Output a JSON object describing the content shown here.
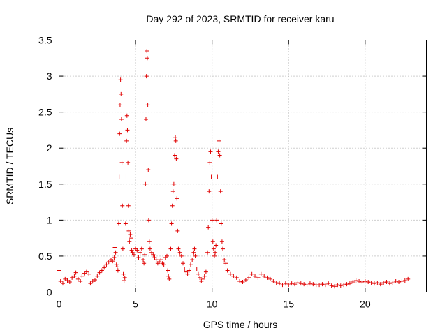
{
  "chart_data": {
    "type": "scatter",
    "title": "Day 292 of 2023, SRMTID for receiver karu",
    "xlabel": "GPS time / hours",
    "ylabel": "SRMTID / TECUs",
    "xlim": [
      0,
      24
    ],
    "ylim": [
      0,
      3.5
    ],
    "xticks": [
      0,
      5,
      10,
      15,
      20
    ],
    "xtick_labels": [
      "0",
      "5",
      "10",
      "15",
      "20"
    ],
    "yticks": [
      0,
      0.5,
      1,
      1.5,
      2,
      2.5,
      3,
      3.5
    ],
    "ytick_labels": [
      "0",
      "0.5",
      "1",
      "1.5",
      "2",
      "2.5",
      "3",
      "3.5"
    ],
    "grid": true,
    "marker": "+",
    "color": "#e00000",
    "series": [
      {
        "name": "SRMTID",
        "points": [
          [
            0.0,
            0.3
          ],
          [
            0.1,
            0.15
          ],
          [
            0.25,
            0.12
          ],
          [
            0.4,
            0.18
          ],
          [
            0.55,
            0.16
          ],
          [
            0.7,
            0.14
          ],
          [
            0.85,
            0.2
          ],
          [
            1.0,
            0.22
          ],
          [
            1.1,
            0.27
          ],
          [
            1.25,
            0.18
          ],
          [
            1.4,
            0.15
          ],
          [
            1.5,
            0.22
          ],
          [
            1.65,
            0.26
          ],
          [
            1.8,
            0.28
          ],
          [
            1.95,
            0.25
          ],
          [
            2.05,
            0.12
          ],
          [
            2.2,
            0.15
          ],
          [
            2.35,
            0.17
          ],
          [
            2.5,
            0.22
          ],
          [
            2.65,
            0.27
          ],
          [
            2.8,
            0.3
          ],
          [
            2.95,
            0.34
          ],
          [
            3.1,
            0.38
          ],
          [
            3.25,
            0.42
          ],
          [
            3.4,
            0.45
          ],
          [
            3.5,
            0.43
          ],
          [
            3.6,
            0.48
          ],
          [
            3.65,
            0.62
          ],
          [
            3.7,
            0.55
          ],
          [
            3.75,
            0.38
          ],
          [
            3.8,
            0.35
          ],
          [
            3.85,
            0.3
          ],
          [
            3.9,
            0.95
          ],
          [
            3.93,
            1.6
          ],
          [
            3.96,
            2.2
          ],
          [
            3.99,
            2.6
          ],
          [
            4.02,
            2.95
          ],
          [
            4.05,
            2.75
          ],
          [
            4.08,
            2.4
          ],
          [
            4.11,
            1.8
          ],
          [
            4.14,
            1.2
          ],
          [
            4.17,
            0.6
          ],
          [
            4.2,
            0.25
          ],
          [
            4.25,
            0.16
          ],
          [
            4.3,
            0.2
          ],
          [
            4.35,
            0.95
          ],
          [
            4.38,
            1.6
          ],
          [
            4.41,
            2.1
          ],
          [
            4.44,
            2.45
          ],
          [
            4.47,
            2.25
          ],
          [
            4.5,
            1.8
          ],
          [
            4.53,
            1.2
          ],
          [
            4.56,
            0.85
          ],
          [
            4.6,
            0.7
          ],
          [
            4.65,
            0.8
          ],
          [
            4.7,
            0.75
          ],
          [
            4.75,
            0.58
          ],
          [
            4.8,
            0.55
          ],
          [
            4.9,
            0.52
          ],
          [
            5.0,
            0.6
          ],
          [
            5.1,
            0.58
          ],
          [
            5.2,
            0.48
          ],
          [
            5.3,
            0.55
          ],
          [
            5.4,
            0.6
          ],
          [
            5.5,
            0.45
          ],
          [
            5.55,
            0.4
          ],
          [
            5.6,
            0.52
          ],
          [
            5.65,
            1.5
          ],
          [
            5.68,
            2.4
          ],
          [
            5.71,
            3.0
          ],
          [
            5.74,
            3.35
          ],
          [
            5.77,
            3.25
          ],
          [
            5.8,
            2.6
          ],
          [
            5.83,
            1.7
          ],
          [
            5.86,
            1.0
          ],
          [
            5.9,
            0.7
          ],
          [
            5.95,
            0.6
          ],
          [
            6.05,
            0.55
          ],
          [
            6.15,
            0.52
          ],
          [
            6.25,
            0.48
          ],
          [
            6.35,
            0.45
          ],
          [
            6.45,
            0.4
          ],
          [
            6.55,
            0.42
          ],
          [
            6.65,
            0.45
          ],
          [
            6.75,
            0.4
          ],
          [
            6.85,
            0.38
          ],
          [
            6.95,
            0.48
          ],
          [
            7.05,
            0.5
          ],
          [
            7.1,
            0.3
          ],
          [
            7.15,
            0.22
          ],
          [
            7.2,
            0.18
          ],
          [
            7.3,
            0.6
          ],
          [
            7.35,
            0.95
          ],
          [
            7.4,
            1.2
          ],
          [
            7.45,
            1.4
          ],
          [
            7.5,
            1.5
          ],
          [
            7.55,
            1.9
          ],
          [
            7.6,
            2.15
          ],
          [
            7.63,
            2.1
          ],
          [
            7.66,
            1.85
          ],
          [
            7.7,
            1.3
          ],
          [
            7.75,
            0.85
          ],
          [
            7.8,
            0.6
          ],
          [
            7.9,
            0.55
          ],
          [
            8.0,
            0.5
          ],
          [
            8.1,
            0.4
          ],
          [
            8.2,
            0.32
          ],
          [
            8.3,
            0.28
          ],
          [
            8.4,
            0.25
          ],
          [
            8.5,
            0.3
          ],
          [
            8.6,
            0.38
          ],
          [
            8.7,
            0.45
          ],
          [
            8.8,
            0.55
          ],
          [
            8.85,
            0.6
          ],
          [
            8.9,
            0.5
          ],
          [
            9.0,
            0.32
          ],
          [
            9.1,
            0.25
          ],
          [
            9.2,
            0.2
          ],
          [
            9.3,
            0.15
          ],
          [
            9.4,
            0.18
          ],
          [
            9.5,
            0.22
          ],
          [
            9.6,
            0.28
          ],
          [
            9.7,
            0.55
          ],
          [
            9.75,
            0.9
          ],
          [
            9.8,
            1.4
          ],
          [
            9.85,
            1.8
          ],
          [
            9.9,
            1.95
          ],
          [
            9.95,
            1.6
          ],
          [
            10.0,
            1.0
          ],
          [
            10.05,
            0.7
          ],
          [
            10.1,
            0.6
          ],
          [
            10.15,
            0.5
          ],
          [
            10.2,
            0.55
          ],
          [
            10.25,
            0.65
          ],
          [
            10.3,
            1.0
          ],
          [
            10.35,
            1.6
          ],
          [
            10.4,
            1.95
          ],
          [
            10.45,
            2.1
          ],
          [
            10.5,
            1.9
          ],
          [
            10.55,
            1.4
          ],
          [
            10.6,
            0.95
          ],
          [
            10.65,
            0.7
          ],
          [
            10.7,
            0.6
          ],
          [
            10.8,
            0.45
          ],
          [
            10.9,
            0.4
          ],
          [
            11.0,
            0.3
          ],
          [
            11.2,
            0.25
          ],
          [
            11.4,
            0.22
          ],
          [
            11.6,
            0.2
          ],
          [
            11.8,
            0.15
          ],
          [
            12.0,
            0.14
          ],
          [
            12.2,
            0.17
          ],
          [
            12.4,
            0.2
          ],
          [
            12.6,
            0.25
          ],
          [
            12.8,
            0.22
          ],
          [
            13.0,
            0.2
          ],
          [
            13.2,
            0.25
          ],
          [
            13.4,
            0.22
          ],
          [
            13.6,
            0.2
          ],
          [
            13.8,
            0.18
          ],
          [
            14.0,
            0.15
          ],
          [
            14.2,
            0.13
          ],
          [
            14.4,
            0.12
          ],
          [
            14.6,
            0.1
          ],
          [
            14.8,
            0.12
          ],
          [
            15.0,
            0.1
          ],
          [
            15.2,
            0.12
          ],
          [
            15.4,
            0.11
          ],
          [
            15.6,
            0.13
          ],
          [
            15.8,
            0.12
          ],
          [
            16.0,
            0.11
          ],
          [
            16.2,
            0.1
          ],
          [
            16.4,
            0.12
          ],
          [
            16.6,
            0.11
          ],
          [
            16.8,
            0.1
          ],
          [
            17.0,
            0.1
          ],
          [
            17.2,
            0.11
          ],
          [
            17.4,
            0.1
          ],
          [
            17.6,
            0.12
          ],
          [
            17.8,
            0.09
          ],
          [
            18.0,
            0.08
          ],
          [
            18.2,
            0.1
          ],
          [
            18.4,
            0.09
          ],
          [
            18.6,
            0.1
          ],
          [
            18.8,
            0.11
          ],
          [
            19.0,
            0.12
          ],
          [
            19.2,
            0.14
          ],
          [
            19.4,
            0.16
          ],
          [
            19.6,
            0.15
          ],
          [
            19.8,
            0.14
          ],
          [
            20.0,
            0.15
          ],
          [
            20.2,
            0.14
          ],
          [
            20.4,
            0.13
          ],
          [
            20.6,
            0.12
          ],
          [
            20.8,
            0.13
          ],
          [
            21.0,
            0.11
          ],
          [
            21.2,
            0.13
          ],
          [
            21.4,
            0.14
          ],
          [
            21.6,
            0.12
          ],
          [
            21.8,
            0.13
          ],
          [
            22.0,
            0.15
          ],
          [
            22.2,
            0.14
          ],
          [
            22.4,
            0.15
          ],
          [
            22.6,
            0.16
          ],
          [
            22.8,
            0.18
          ]
        ]
      }
    ]
  }
}
